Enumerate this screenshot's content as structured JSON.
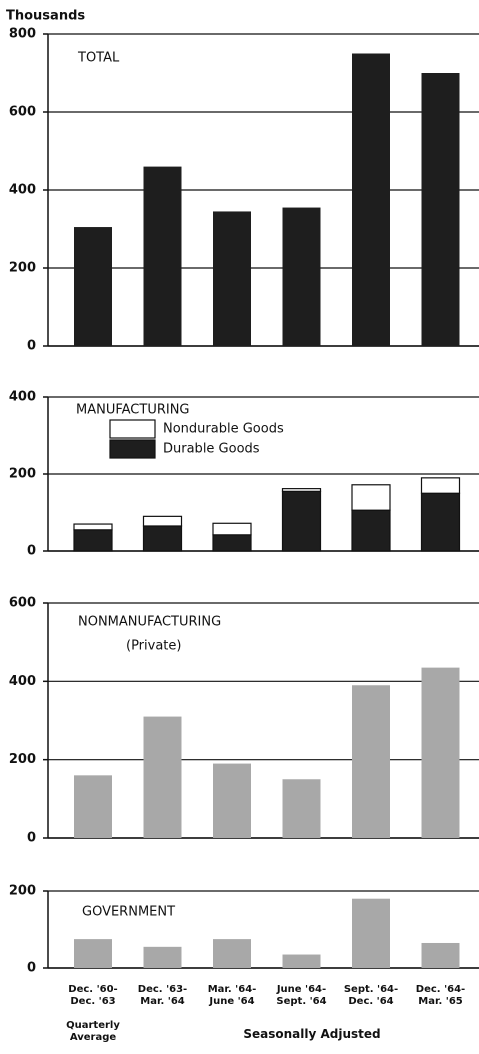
{
  "chart_data": [
    {
      "type": "bar",
      "title": "TOTAL",
      "y_label": "Thousands",
      "values": [
        305,
        460,
        345,
        355,
        750,
        700
      ],
      "color": "#1e1e1e",
      "ylim": [
        0,
        800
      ],
      "yticks": [
        0,
        200,
        400,
        600,
        800
      ],
      "grid": true
    },
    {
      "type": "stacked_bar",
      "title": "MANUFACTURING",
      "series": [
        {
          "name": "Durable Goods",
          "color": "#1e1e1e",
          "values": [
            55,
            65,
            42,
            155,
            106,
            150
          ]
        },
        {
          "name": "Nondurable Goods",
          "color": "#ffffff",
          "values": [
            15,
            25,
            30,
            7,
            66,
            40
          ]
        }
      ],
      "ylim": [
        0,
        400
      ],
      "yticks": [
        0,
        200,
        400
      ],
      "grid": true
    },
    {
      "type": "bar",
      "title": "NONMANUFACTURING",
      "subtitle": "(Private)",
      "values": [
        160,
        310,
        190,
        150,
        390,
        435
      ],
      "color": "#a8a8a8",
      "ylim": [
        0,
        600
      ],
      "yticks": [
        0,
        200,
        400,
        600
      ],
      "grid": true
    },
    {
      "type": "bar",
      "title": "GOVERNMENT",
      "categories": [
        "Dec. '60-\nDec. '63",
        "Dec. '63-\nMar. '64",
        "Mar. '64-\nJune '64",
        "June '64-\nSept. '64",
        "Sept. '64-\nDec. '64",
        "Dec. '64-\nMar. '65"
      ],
      "values": [
        75,
        55,
        75,
        35,
        180,
        65
      ],
      "color": "#a8a8a8",
      "ylim": [
        0,
        200
      ],
      "yticks": [
        0,
        200
      ],
      "grid": true,
      "notes": [
        "Quarterly\nAverage",
        "Seasonally Adjusted"
      ]
    }
  ]
}
